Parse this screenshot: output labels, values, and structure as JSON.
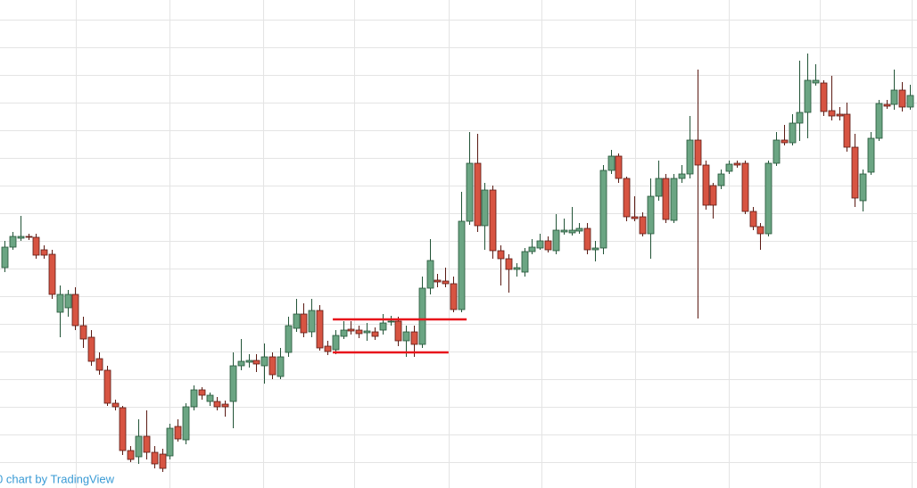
{
  "chart_data": {
    "type": "candlestick",
    "watermark": "0 chart by TradingView",
    "grid": true,
    "up_color": "#6ba583",
    "up_border": "#225437",
    "down_color": "#d75442",
    "down_border": "#5b1a13",
    "xlim": [
      -0.57,
      115.9
    ],
    "ylim": [
      0,
      547
    ],
    "xticks": [
      9.1,
      21.0,
      32.8,
      44.4,
      56.4,
      68.2,
      80.1,
      92.0,
      103.6,
      115.2
    ],
    "yticks": [
      29,
      60,
      91,
      122,
      153,
      184,
      215,
      246,
      277,
      308,
      339,
      370,
      401,
      432,
      463,
      494,
      525
    ],
    "lines": [
      {
        "y": 189,
        "x": [
          41.7,
          58.7
        ],
        "color": "#e8141b"
      },
      {
        "y": 152,
        "x": [
          41.7,
          56.4
        ],
        "color": "#e8141b"
      }
    ],
    "open": [
      247,
      270,
      280,
      282,
      281,
      267,
      262,
      197,
      202,
      217,
      182,
      169,
      145,
      132,
      95,
      90,
      42,
      35,
      58,
      40,
      38,
      36,
      69,
      54,
      91,
      110,
      97,
      97,
      94,
      97,
      137,
      141,
      143,
      137,
      147,
      125,
      152,
      179,
      195,
      175,
      199,
      159,
      155,
      170,
      178,
      177,
      174,
      175,
      177,
      186,
      187,
      165,
      175,
      161,
      224,
      233,
      232,
      229,
      200,
      299,
      364,
      294,
      334,
      266,
      257,
      245,
      242,
      265,
      269,
      277,
      266,
      287,
      286,
      288,
      291,
      267,
      269,
      356,
      372,
      347,
      304,
      304,
      285,
      327,
      347,
      300,
      347,
      352,
      390,
      362,
      339,
      339,
      355,
      364,
      364,
      310,
      293,
      285,
      364,
      390,
      387,
      409,
      421,
      454,
      454,
      423,
      419,
      419,
      382,
      322,
      354,
      392,
      430,
      430,
      446,
      427
    ],
    "high": [
      277,
      287,
      305,
      285,
      285,
      272,
      267,
      227,
      222,
      225,
      192,
      177,
      152,
      137,
      99,
      92,
      47,
      77,
      87,
      47,
      44,
      72,
      77,
      95,
      115,
      113,
      107,
      102,
      98,
      152,
      167,
      150,
      150,
      162,
      152,
      157,
      192,
      212,
      207,
      212,
      205,
      165,
      177,
      187,
      187,
      182,
      185,
      180,
      195,
      193,
      192,
      182,
      182,
      237,
      279,
      240,
      247,
      237,
      332,
      399,
      397,
      342,
      339,
      272,
      262,
      252,
      269,
      279,
      285,
      282,
      307,
      302,
      315,
      297,
      297,
      277,
      362,
      379,
      375,
      349,
      327,
      309,
      347,
      367,
      352,
      352,
      362,
      417,
      469,
      367,
      342,
      357,
      367,
      367,
      367,
      315,
      297,
      367,
      399,
      407,
      419,
      479,
      487,
      475,
      457,
      462,
      427,
      432,
      397,
      357,
      399,
      435,
      435,
      469,
      455,
      452
    ],
    "low": [
      242,
      267,
      277,
      278,
      257,
      257,
      212,
      169,
      192,
      177,
      157,
      137,
      127,
      92,
      87,
      37,
      29,
      27,
      32,
      22,
      18,
      32,
      52,
      49,
      87,
      99,
      92,
      87,
      80,
      67,
      132,
      135,
      130,
      117,
      122,
      122,
      147,
      175,
      169,
      169,
      154,
      149,
      150,
      167,
      172,
      168,
      165,
      166,
      172,
      182,
      159,
      147,
      147,
      157,
      217,
      225,
      225,
      197,
      197,
      295,
      287,
      267,
      257,
      227,
      219,
      237,
      237,
      262,
      267,
      264,
      262,
      284,
      283,
      285,
      262,
      254,
      262,
      352,
      342,
      299,
      299,
      282,
      257,
      322,
      297,
      297,
      342,
      347,
      190,
      312,
      302,
      335,
      352,
      359,
      307,
      289,
      267,
      282,
      361,
      384,
      384,
      389,
      392,
      451,
      417,
      412,
      412,
      377,
      315,
      310,
      351,
      389,
      425,
      424,
      422,
      424
    ],
    "close": [
      270,
      282,
      282,
      281,
      261,
      261,
      217,
      217,
      217,
      182,
      167,
      142,
      132,
      95,
      91,
      42,
      32,
      58,
      40,
      27,
      22,
      67,
      55,
      91,
      110,
      104,
      104,
      91,
      91,
      137,
      142,
      143,
      139,
      147,
      127,
      147,
      182,
      195,
      174,
      199,
      157,
      153,
      171,
      177,
      176,
      173,
      176,
      170,
      185,
      187,
      165,
      175,
      161,
      224,
      255,
      231,
      229,
      200,
      299,
      364,
      294,
      334,
      266,
      257,
      245,
      247,
      265,
      270,
      277,
      267,
      289,
      289,
      289,
      291,
      267,
      269,
      356,
      372,
      347,
      304,
      302,
      285,
      327,
      347,
      301,
      347,
      352,
      390,
      362,
      317,
      317,
      352,
      363,
      362,
      310,
      293,
      285,
      364,
      390,
      387,
      409,
      421,
      457,
      457,
      422,
      417,
      417,
      382,
      325,
      352,
      392,
      431,
      428,
      446,
      427,
      440
    ]
  }
}
